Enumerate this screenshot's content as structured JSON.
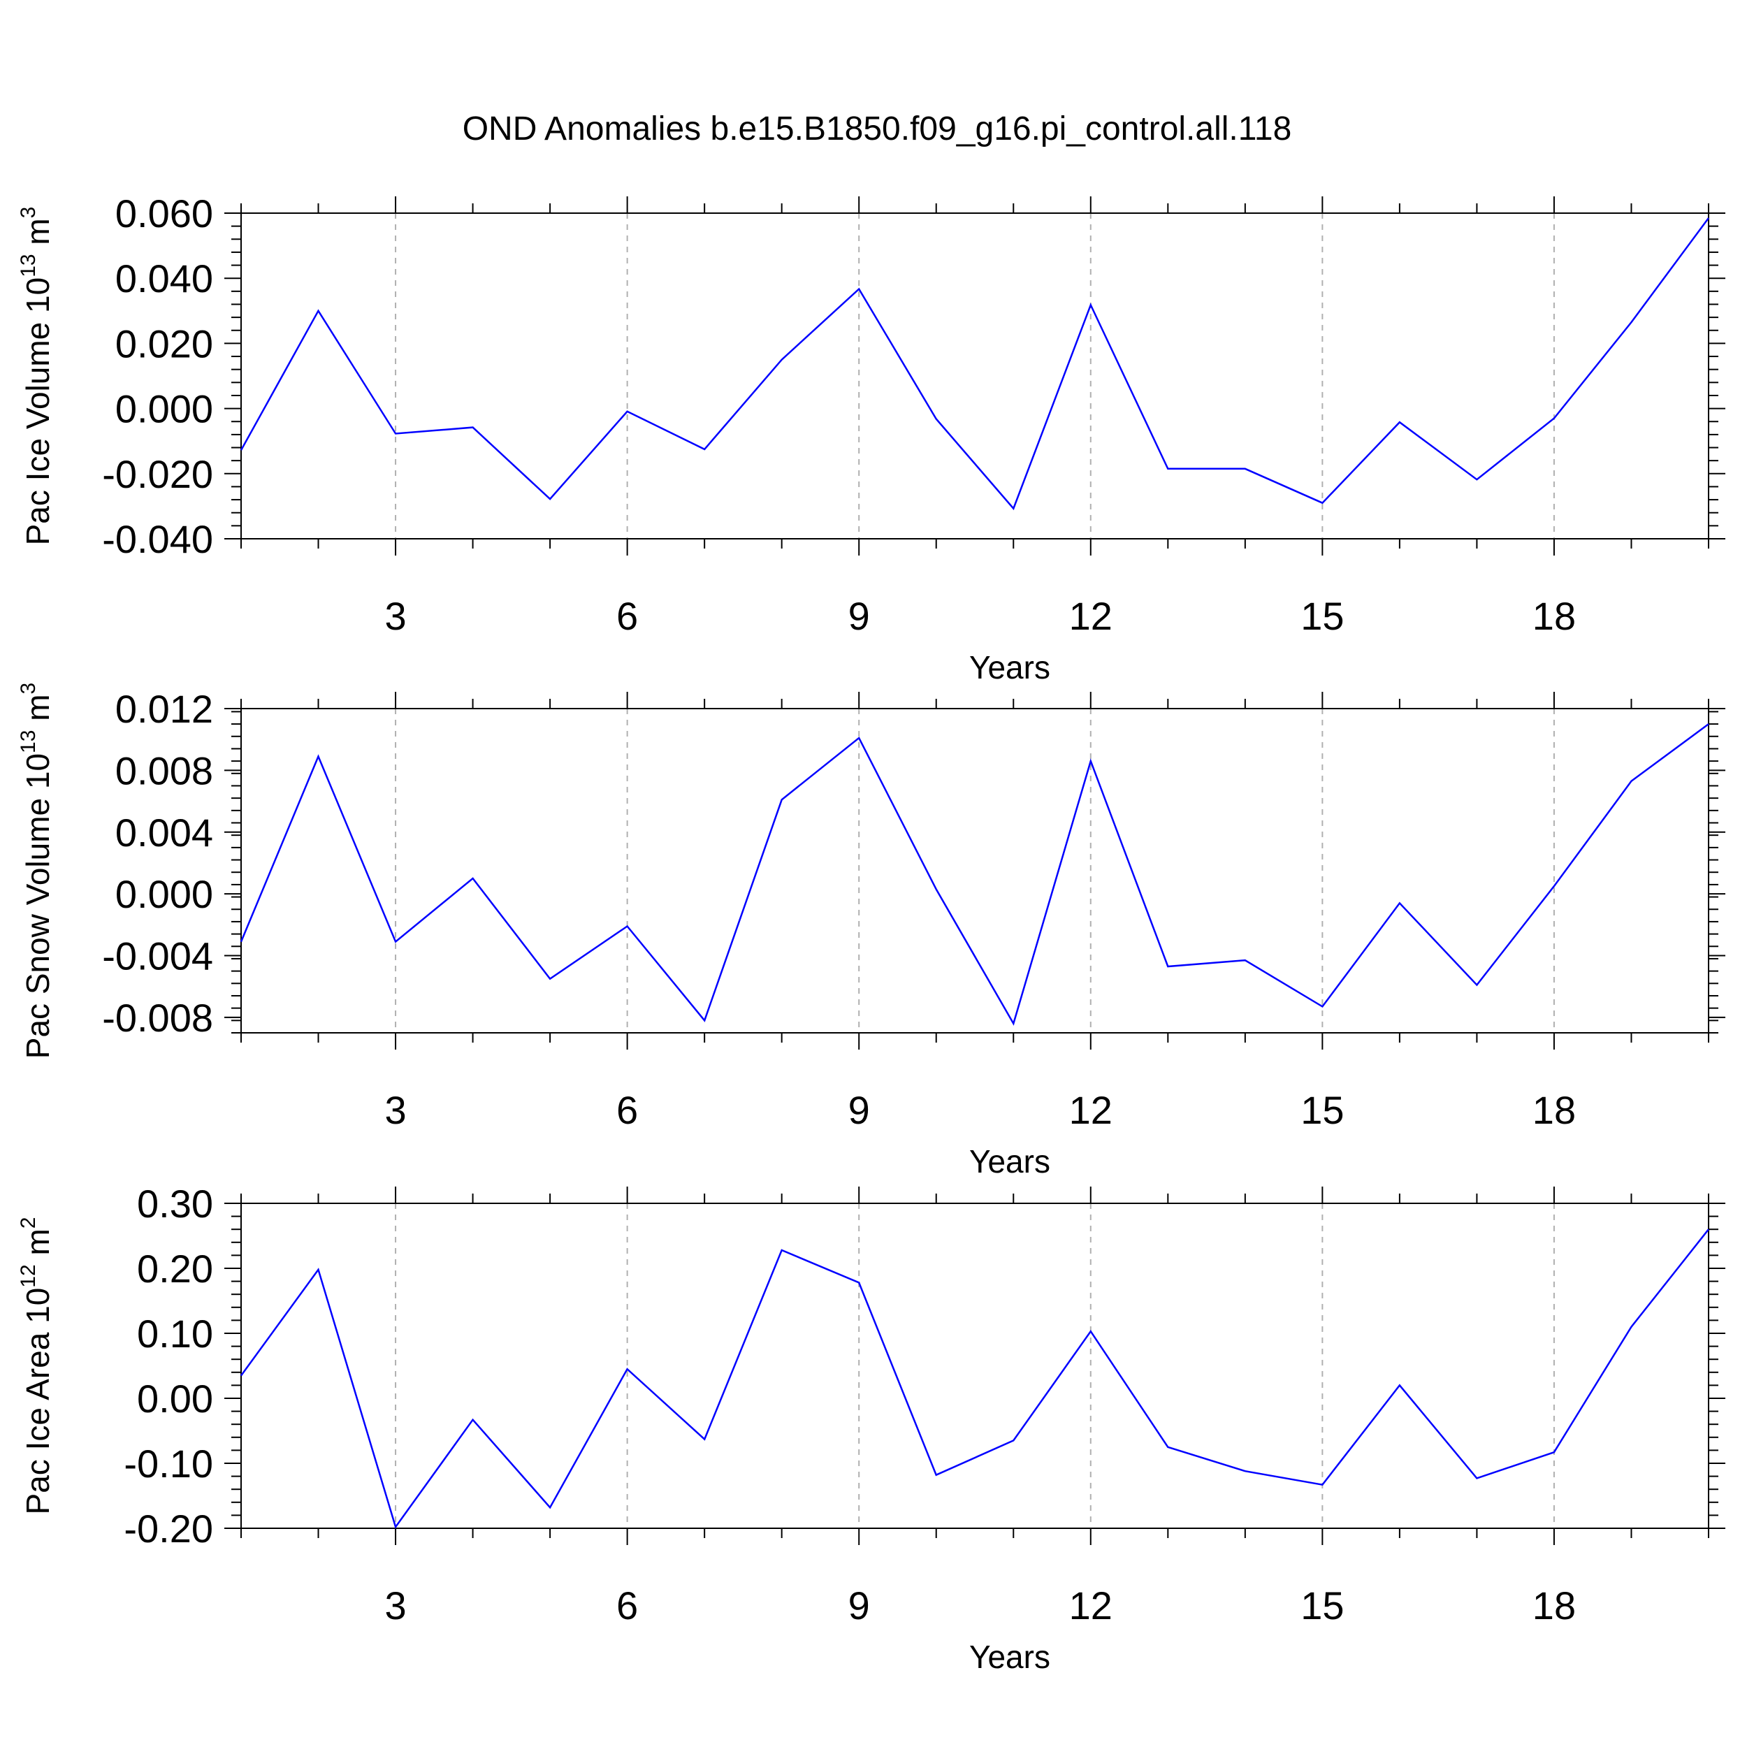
{
  "figure": {
    "title": "OND Anomalies b.e15.B1850.f09_g16.pi_control.all.118"
  },
  "colors": {
    "line": "#0000ff",
    "axis": "#000000",
    "grid": "#b0b0b0"
  },
  "chart_data": [
    {
      "type": "line",
      "title": "",
      "xlabel": "Years",
      "ylabel": {
        "text": "Pac Ice Volume 10",
        "sup": "13",
        "unit": " m",
        "unit_sup": "3"
      },
      "xlim": [
        1,
        20
      ],
      "ylim": [
        -0.04,
        0.06
      ],
      "xticks": [
        3,
        6,
        9,
        12,
        15,
        18
      ],
      "yticks": [
        -0.04,
        -0.02,
        0.0,
        0.02,
        0.04,
        0.06
      ],
      "yticklabels": [
        "-0.040",
        "-0.020",
        "0.000",
        "0.020",
        "0.040",
        "0.060"
      ],
      "grid": "vertical dashed at major x ticks",
      "x": [
        1,
        2,
        3,
        4,
        5,
        6,
        7,
        8,
        9,
        10,
        11,
        12,
        13,
        14,
        15,
        16,
        17,
        18,
        19,
        20
      ],
      "values": [
        -0.0128,
        0.03,
        -0.0077,
        -0.0058,
        -0.0278,
        -0.0009,
        -0.0125,
        0.015,
        0.0367,
        -0.0032,
        -0.0307,
        0.0318,
        -0.0185,
        -0.0185,
        -0.029,
        -0.0042,
        -0.0218,
        -0.003,
        0.0265,
        0.0585
      ]
    },
    {
      "type": "line",
      "title": "",
      "xlabel": "Years",
      "ylabel": {
        "text": "Pac Snow Volume 10",
        "sup": "13",
        "unit": " m",
        "unit_sup": "3"
      },
      "xlim": [
        1,
        20
      ],
      "ylim": [
        -0.009,
        0.012
      ],
      "xticks": [
        3,
        6,
        9,
        12,
        15,
        18
      ],
      "yticks": [
        -0.008,
        -0.004,
        0.0,
        0.004,
        0.008,
        0.012
      ],
      "yticklabels": [
        "-0.008",
        "-0.004",
        "0.000",
        "0.004",
        "0.008",
        "0.012"
      ],
      "grid": "vertical dashed at major x ticks",
      "x": [
        1,
        2,
        3,
        4,
        5,
        6,
        7,
        8,
        9,
        10,
        11,
        12,
        13,
        14,
        15,
        16,
        17,
        18,
        19,
        20
      ],
      "values": [
        -0.0031,
        0.0089,
        -0.0031,
        0.001,
        -0.0055,
        -0.0021,
        -0.0082,
        0.0061,
        0.0101,
        0.0003,
        -0.0084,
        0.0086,
        -0.0047,
        -0.0043,
        -0.0073,
        -0.0006,
        -0.0059,
        0.0005,
        0.0073,
        0.011
      ]
    },
    {
      "type": "line",
      "title": "",
      "xlabel": "Years",
      "ylabel": {
        "text": "Pac Ice Area 10",
        "sup": "12",
        "unit": " m",
        "unit_sup": "2"
      },
      "xlim": [
        1,
        20
      ],
      "ylim": [
        -0.2,
        0.3
      ],
      "xticks": [
        3,
        6,
        9,
        12,
        15,
        18
      ],
      "yticks": [
        -0.2,
        -0.1,
        0.0,
        0.1,
        0.2,
        0.3
      ],
      "yticklabels": [
        "-0.20",
        "-0.10",
        "0.00",
        "0.10",
        "0.20",
        "0.30"
      ],
      "grid": "vertical dashed at major x ticks",
      "x": [
        1,
        2,
        3,
        4,
        5,
        6,
        7,
        8,
        9,
        10,
        11,
        12,
        13,
        14,
        15,
        16,
        17,
        18,
        19,
        20
      ],
      "values": [
        0.035,
        0.198,
        -0.198,
        -0.033,
        -0.168,
        0.045,
        -0.063,
        0.228,
        0.178,
        -0.118,
        -0.065,
        0.103,
        -0.075,
        -0.112,
        -0.133,
        0.02,
        -0.123,
        -0.083,
        0.11,
        0.26
      ]
    }
  ]
}
